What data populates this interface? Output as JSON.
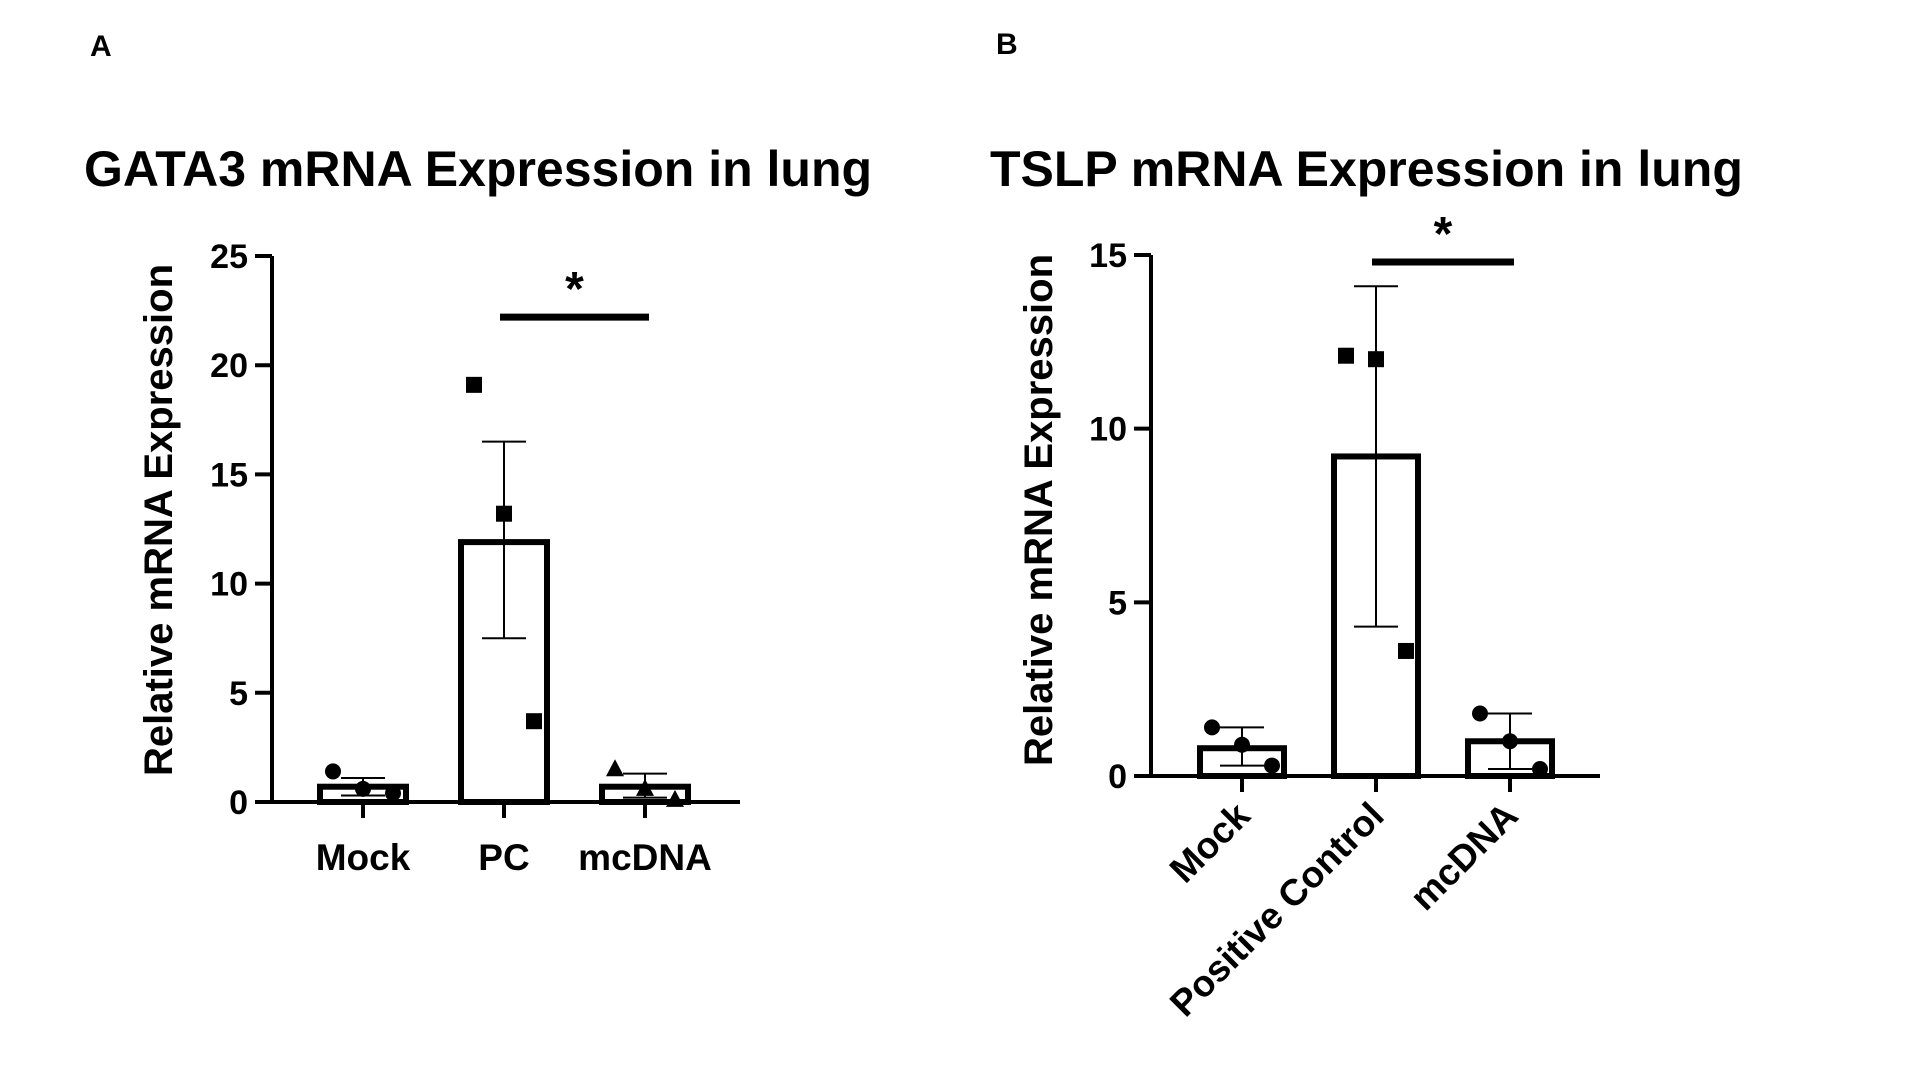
{
  "panels": [
    {
      "letter": "A",
      "title": "GATA3 mRNA Expression in lung"
    },
    {
      "letter": "B",
      "title": "TSLP mRNA Expression in lung"
    }
  ],
  "chart_data": [
    {
      "type": "bar",
      "title": "GATA3 mRNA Expression in lung",
      "panel_label": "A",
      "ylabel": "Relative mRNA Expression",
      "xlabel": "",
      "ylim": [
        0,
        25
      ],
      "yticks": [
        0,
        5,
        10,
        15,
        20,
        25
      ],
      "categories": [
        "Mock",
        "PC",
        "mcDNA"
      ],
      "values": [
        0.7,
        11.9,
        0.7
      ],
      "error": [
        {
          "low": 0.3,
          "high": 1.1
        },
        {
          "low": 7.5,
          "high": 16.5
        },
        {
          "low": 0.2,
          "high": 1.3
        }
      ],
      "points": [
        {
          "category": "Mock",
          "marker": "circle",
          "values": [
            1.4,
            0.6,
            0.4
          ]
        },
        {
          "category": "PC",
          "marker": "square",
          "values": [
            19.1,
            13.2,
            3.7
          ]
        },
        {
          "category": "mcDNA",
          "marker": "triangle",
          "values": [
            1.5,
            0.6,
            0.1
          ]
        }
      ],
      "significance": [
        {
          "from": "PC",
          "to": "mcDNA",
          "label": "*",
          "y": 22.2
        }
      ],
      "x_tick_rotation": 0
    },
    {
      "type": "bar",
      "title": "TSLP mRNA Expression in lung",
      "panel_label": "B",
      "ylabel": "Relative mRNA Expression",
      "xlabel": "",
      "ylim": [
        0,
        15
      ],
      "yticks": [
        0,
        5,
        10,
        15
      ],
      "categories": [
        "Mock",
        "Positive Control",
        "mcDNA"
      ],
      "values": [
        0.8,
        9.2,
        1.0
      ],
      "error": [
        {
          "low": 0.3,
          "high": 1.4
        },
        {
          "low": 4.3,
          "high": 14.1
        },
        {
          "low": 0.2,
          "high": 1.8
        }
      ],
      "points": [
        {
          "category": "Mock",
          "marker": "circle",
          "values": [
            1.4,
            0.9,
            0.3
          ]
        },
        {
          "category": "Positive Control",
          "marker": "square",
          "values": [
            12.1,
            12.0,
            3.6
          ]
        },
        {
          "category": "mcDNA",
          "marker": "circle",
          "values": [
            1.8,
            1.0,
            0.2
          ]
        }
      ],
      "significance": [
        {
          "from": "Positive Control",
          "to": "mcDNA",
          "label": "*",
          "y": 14.8
        }
      ],
      "x_tick_rotation": -45
    }
  ]
}
